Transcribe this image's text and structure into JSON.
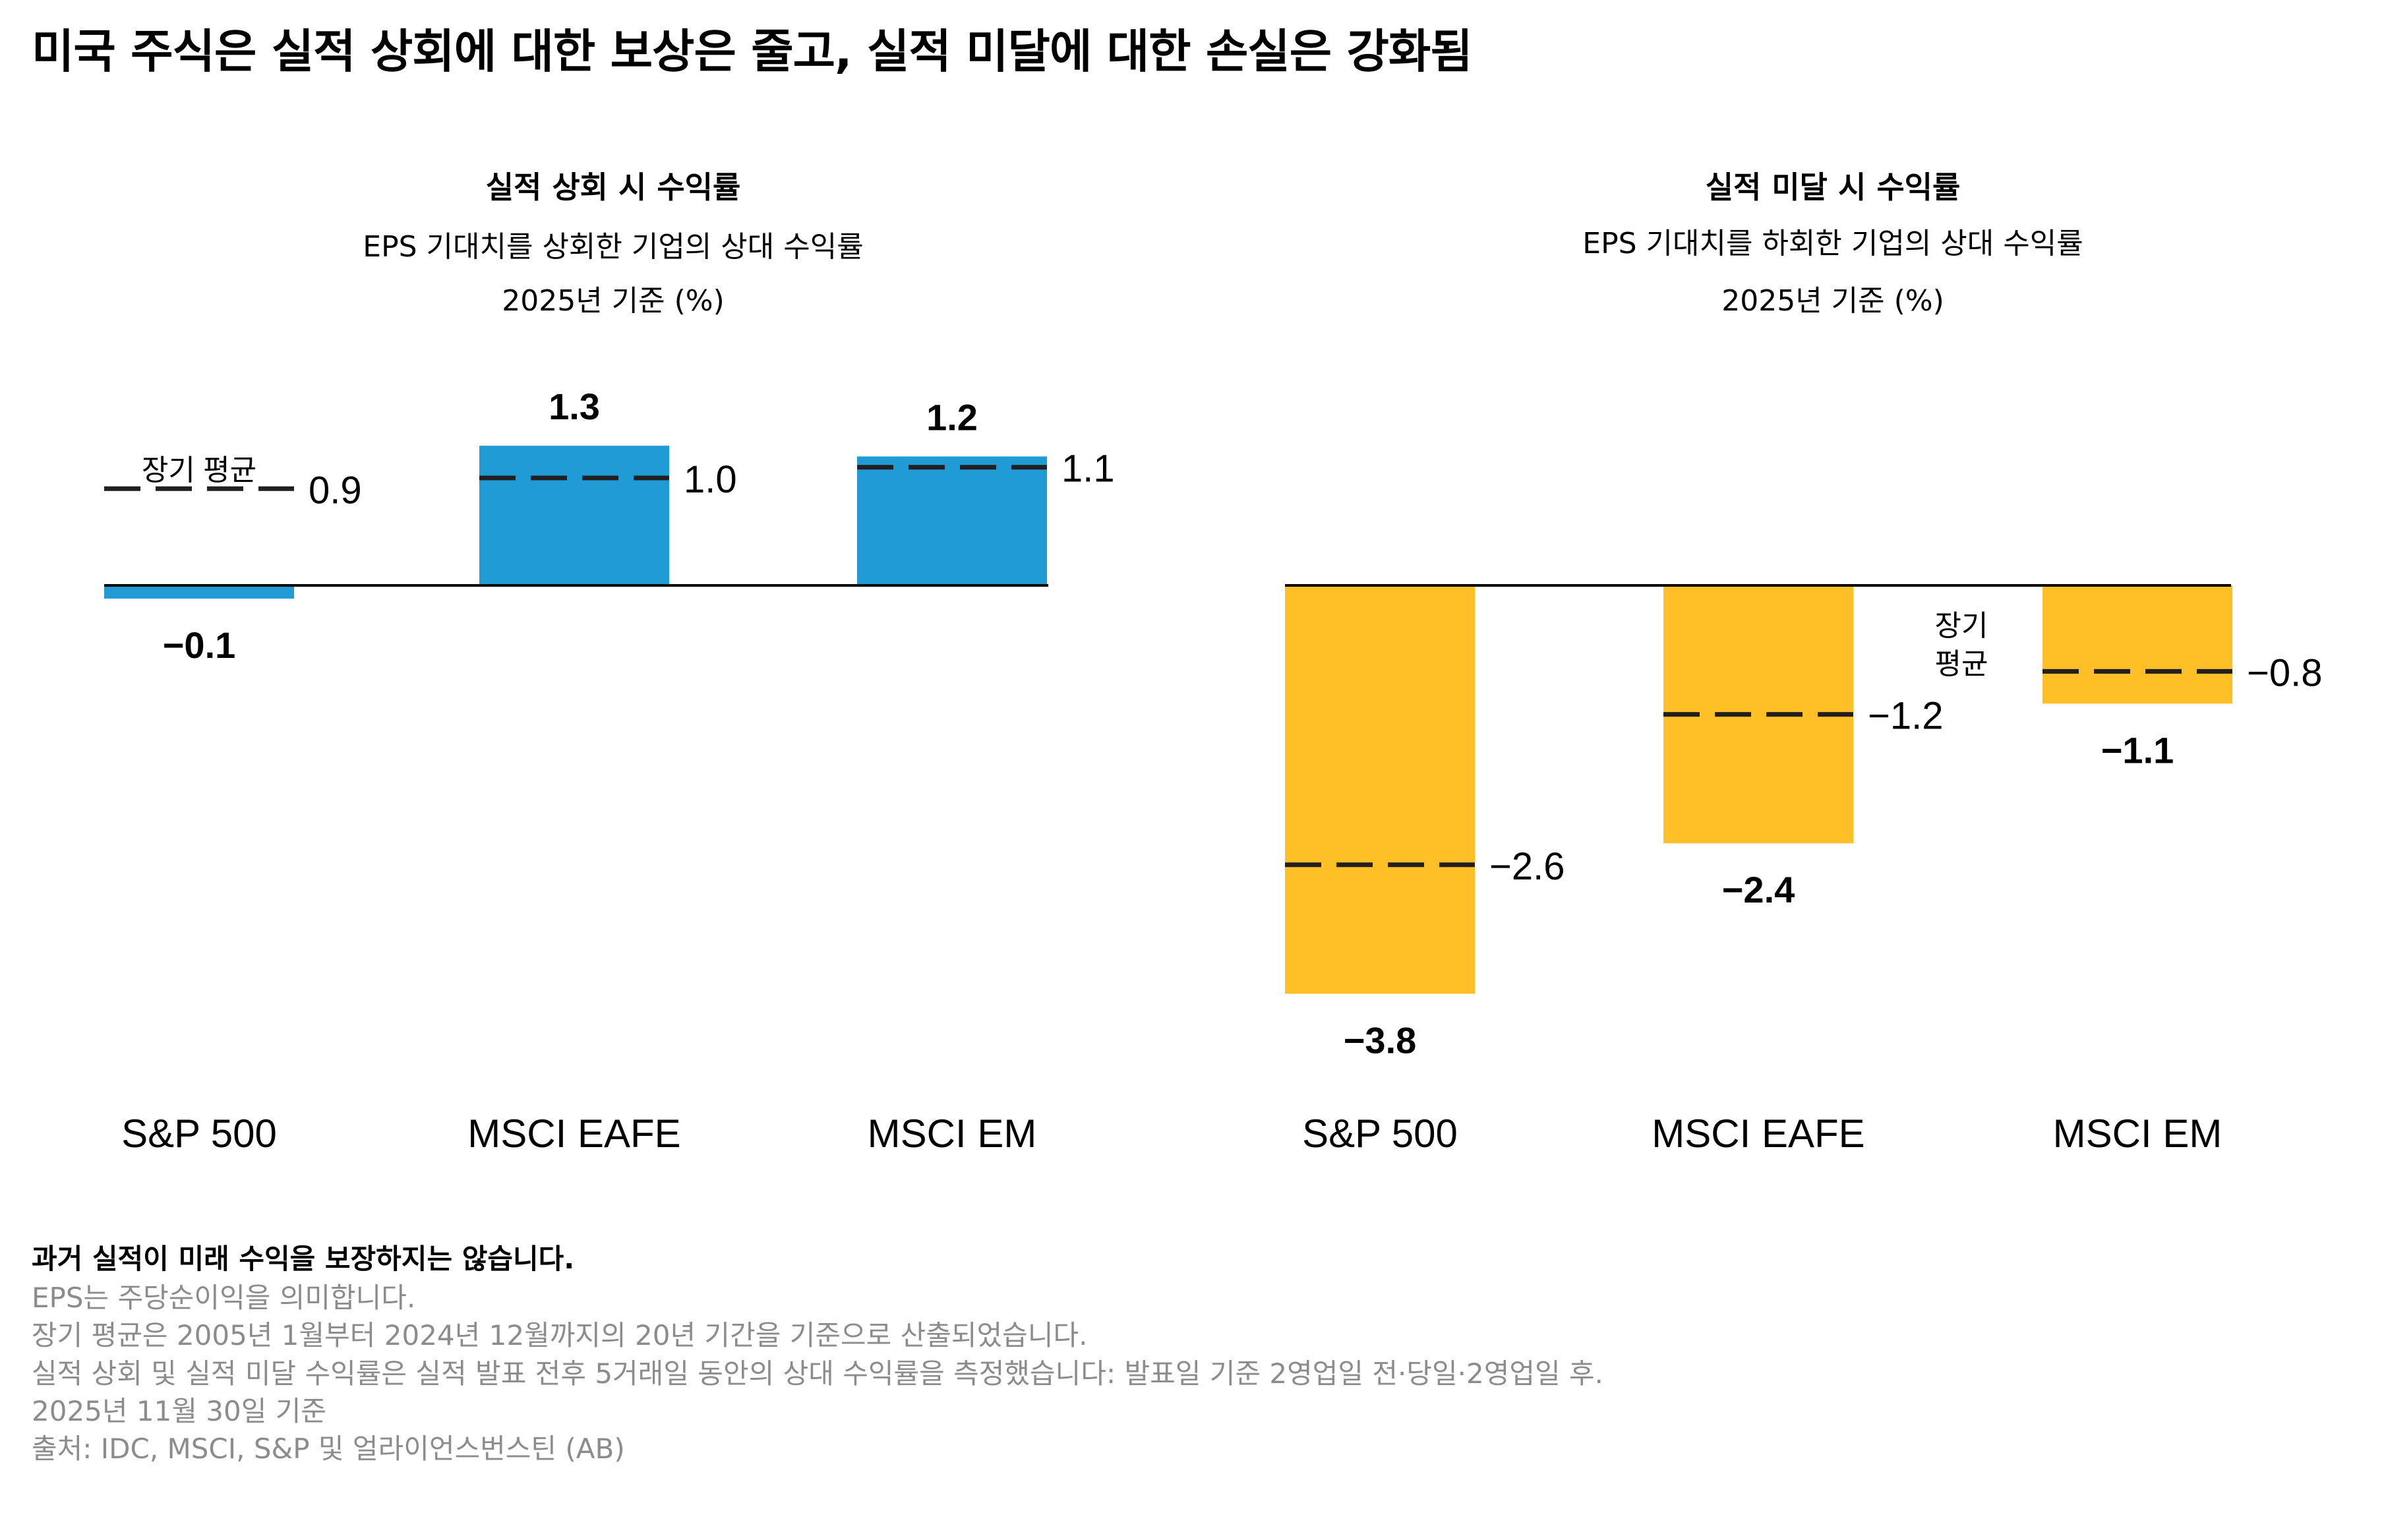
{
  "title": "미국 주식은 실적 상회에 대한 보상은 줄고, 실적 미달에 대한 손실은 강화됨",
  "colors": {
    "beat_bar": "#209BD6",
    "miss_bar": "#FFBF27",
    "average_line": "#231F20",
    "baseline": "#000000",
    "footnote_text": "#8C8C8C"
  },
  "chart_data": [
    {
      "type": "bar",
      "title": "실적 상회 시 수익률",
      "subtitle": "EPS 기대치를 상회한 기업의 상대 수익률",
      "unit_note": "2025년 기준 (%)",
      "xlabel": "",
      "ylabel": "",
      "categories": [
        "S&P 500",
        "MSCI EAFE",
        "MSCI EM"
      ],
      "series": [
        {
          "name": "2025",
          "values": [
            -0.1,
            1.3,
            1.2
          ],
          "labels": [
            "−0.1",
            "1.3",
            "1.2"
          ]
        },
        {
          "name": "장기 평균",
          "values": [
            0.9,
            1.0,
            1.1
          ],
          "labels": [
            "0.9",
            "1.0",
            "1.1"
          ],
          "style": "dashed-line"
        }
      ],
      "average_label": "장기 평균",
      "grid": false,
      "legend": "none",
      "ylim": [
        -0.2,
        1.5
      ]
    },
    {
      "type": "bar",
      "title": "실적 미달 시 수익률",
      "subtitle": "EPS 기대치를 하회한 기업의 상대 수익률",
      "unit_note": "2025년 기준 (%)",
      "xlabel": "",
      "ylabel": "",
      "categories": [
        "S&P 500",
        "MSCI EAFE",
        "MSCI EM"
      ],
      "series": [
        {
          "name": "2025",
          "values": [
            -3.8,
            -2.4,
            -1.1
          ],
          "labels": [
            "−3.8",
            "−2.4",
            "−1.1"
          ]
        },
        {
          "name": "장기 평균",
          "values": [
            -2.6,
            -1.2,
            -0.8
          ],
          "labels": [
            "−2.6",
            "−1.2",
            "−0.8"
          ],
          "style": "dashed-line"
        }
      ],
      "average_label_lines": [
        "장기",
        "평균"
      ],
      "grid": false,
      "legend": "none",
      "ylim": [
        -4.2,
        0
      ]
    }
  ],
  "footnotes": {
    "disclaimer": "과거 실적이 미래 수익을 보장하지는 않습니다.",
    "lines": [
      "EPS는 주당순이익을 의미합니다.",
      "장기 평균은 2005년 1월부터 2024년 12월까지의 20년 기간을 기준으로 산출되었습니다.",
      "실적 상회 및 실적 미달 수익률은 실적 발표 전후 5거래일 동안의 상대 수익률을 측정했습니다: 발표일 기준 2영업일 전·당일·2영업일 후.",
      "2025년 11월 30일 기준",
      "출처: IDC, MSCI, S&P 및 얼라이언스번스틴 (AB)"
    ]
  }
}
